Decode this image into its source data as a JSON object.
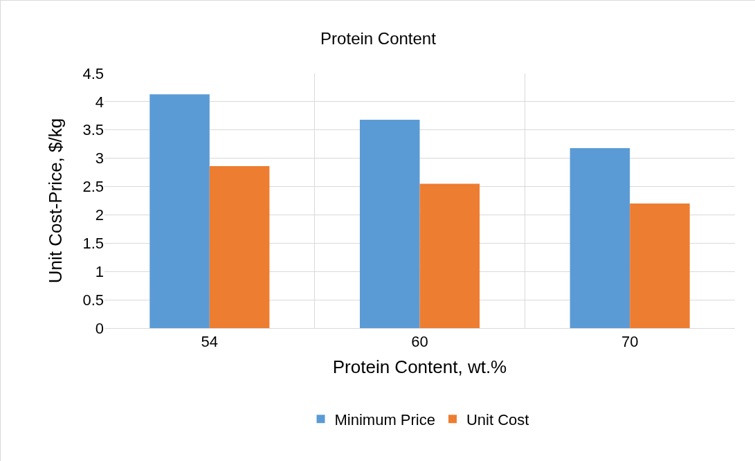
{
  "chart_data": {
    "type": "bar",
    "title": "Protein Content",
    "xlabel": "Protein Content, wt.%",
    "ylabel": "Unit Cost-Price, $/kg",
    "categories": [
      "54",
      "60",
      "70"
    ],
    "series": [
      {
        "name": "Minimum Price",
        "color": "#5b9bd5",
        "values": [
          4.13,
          3.68,
          3.18
        ]
      },
      {
        "name": "Unit Cost",
        "color": "#ed7d31",
        "values": [
          2.86,
          2.55,
          2.2
        ]
      }
    ],
    "ylim": [
      0,
      4.5
    ],
    "yticks": [
      0,
      0.5,
      1,
      1.5,
      2,
      2.5,
      3,
      3.5,
      4,
      4.5
    ],
    "grid": true,
    "legend": "bottom"
  }
}
